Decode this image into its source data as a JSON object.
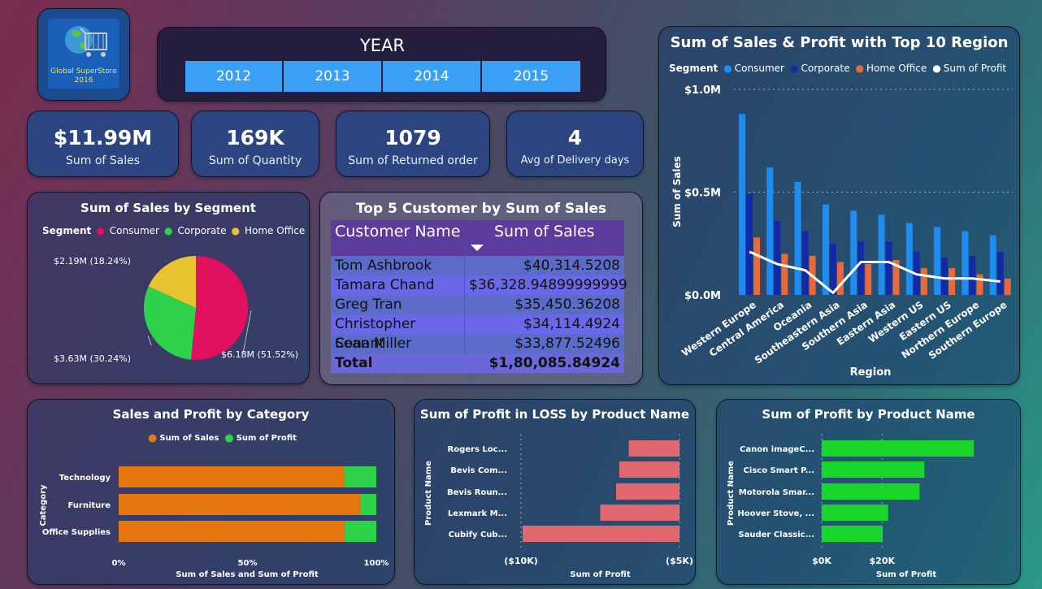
{
  "logo": {
    "line1": "Global SuperStore",
    "line2": "2016"
  },
  "year_slicer": {
    "title": "YEAR",
    "years": [
      "2012",
      "2013",
      "2014",
      "2015"
    ]
  },
  "kpis": [
    {
      "value": "$11.99M",
      "label": "Sum of Sales"
    },
    {
      "value": "169K",
      "label": "Sum of Quantity"
    },
    {
      "value": "1079",
      "label": "Sum of Returned order"
    },
    {
      "value": "4",
      "label": "Avg of Delivery days"
    }
  ],
  "chart_data": [
    {
      "type": "pie",
      "title": "Sum of Sales by Segment",
      "legend_title": "Segment",
      "categories": [
        "Consumer",
        "Corporate",
        "Home Office"
      ],
      "values": [
        6.18,
        3.63,
        2.19
      ],
      "data_labels": [
        "$6.18M (51.52%)",
        "$3.63M (30.24%)",
        "$2.19M (18.24%)"
      ],
      "colors": [
        "#e0105f",
        "#2ed14a",
        "#e8c230"
      ]
    },
    {
      "type": "table",
      "title": "Top 5 Customer by Sum of Sales",
      "columns": [
        "Customer Name",
        "Sum of Sales"
      ],
      "rows": [
        [
          "Tom Ashbrook",
          "$40,314.5208"
        ],
        [
          "Tamara Chand",
          "$36,328.94899999999"
        ],
        [
          "Greg Tran",
          "$35,450.36208"
        ],
        [
          "Christopher Conant",
          "$34,114.4924"
        ],
        [
          "Sean Miller",
          "$33,877.52496"
        ]
      ],
      "total": [
        "Total",
        "$1,80,085.84924"
      ]
    },
    {
      "type": "bar",
      "title": "Sum of Sales & Profit with Top 10 Region",
      "legend_title": "Segment",
      "categories": [
        "Western Europe",
        "Central America",
        "Oceania",
        "Southeastern Asia",
        "Southern Asia",
        "Eastern Asia",
        "Western US",
        "Eastern US",
        "Northern Europe",
        "Southern Europe"
      ],
      "series": [
        {
          "name": "Consumer",
          "color": "#1e8cf0",
          "values": [
            0.88,
            0.62,
            0.55,
            0.44,
            0.41,
            0.39,
            0.35,
            0.33,
            0.31,
            0.29
          ]
        },
        {
          "name": "Corporate",
          "color": "#1229a8",
          "values": [
            0.49,
            0.36,
            0.31,
            0.25,
            0.26,
            0.26,
            0.21,
            0.18,
            0.19,
            0.21
          ]
        },
        {
          "name": "Home Office",
          "color": "#e8693a",
          "values": [
            0.28,
            0.2,
            0.19,
            0.16,
            0.15,
            0.17,
            0.13,
            0.13,
            0.1,
            0.08
          ]
        },
        {
          "name": "Sum of Profit",
          "color": "#ffffff",
          "type": "line",
          "values": [
            0.21,
            0.15,
            0.12,
            0.01,
            0.16,
            0.16,
            0.1,
            0.08,
            0.08,
            0.065
          ]
        }
      ],
      "xlabel": "Region",
      "ylabel": "Sum of Sales",
      "yticks": [
        "$0.0M",
        "$0.5M",
        "$1.0M"
      ],
      "ylim": [
        0,
        1.0
      ]
    },
    {
      "type": "bar",
      "orientation": "horizontal-stacked-100",
      "title": "Sales and Profit by Category",
      "categories": [
        "Technology",
        "Furniture",
        "Office Supplies"
      ],
      "series": [
        {
          "name": "Sum of Sales",
          "color": "#e5760e",
          "values": [
            87.5,
            93.8,
            87.8
          ]
        },
        {
          "name": "Sum of Profit",
          "color": "#2ed14a",
          "values": [
            12.5,
            6.2,
            12.2
          ]
        }
      ],
      "xticks": [
        "0%",
        "50%",
        "100%"
      ],
      "xlabel": "Sum of Sales and Sum of Profit",
      "ylabel": "Category"
    },
    {
      "type": "bar",
      "orientation": "horizontal",
      "title": "Sum of Profit in LOSS by Product Name",
      "categories": [
        "Rogers Loc...",
        "Bevis Com...",
        "Bevis Roun...",
        "Lexmark M...",
        "Cubify Cub..."
      ],
      "values": [
        -3200,
        -3800,
        -4000,
        -5000,
        -9900
      ],
      "xlim": [
        -10000,
        0
      ],
      "xticks": [
        "($10K)",
        "($5K)",
        "$0K"
      ],
      "xlabel": "Sum of Profit",
      "ylabel": "Product Name",
      "color": "#e06870"
    },
    {
      "type": "bar",
      "orientation": "horizontal",
      "title": "Sum of Profit by Product Name",
      "categories": [
        "Canon imageC...",
        "Cisco Smart P...",
        "Motorola Smar...",
        "Hoover Stove, ...",
        "Sauder Classic..."
      ],
      "values": [
        25200,
        17000,
        16200,
        11000,
        10100
      ],
      "xlim": [
        0,
        28000
      ],
      "xticks": [
        "$0K",
        "$20K"
      ],
      "xlabel": "Sum of Profit",
      "ylabel": "Product Name",
      "color": "#18d62a"
    }
  ]
}
